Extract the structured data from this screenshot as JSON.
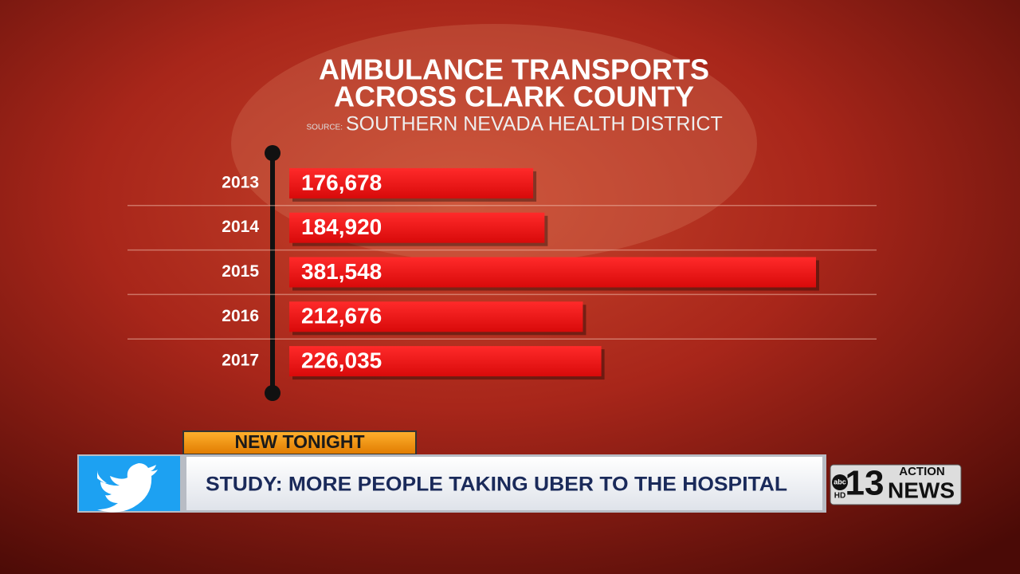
{
  "chart_data": {
    "type": "bar",
    "horizontal": true,
    "title": [
      "AMBULANCE TRANSPORTS",
      "ACROSS CLARK COUNTY"
    ],
    "source_label": "SOURCE:",
    "source": "SOUTHERN NEVADA HEALTH DISTRICT",
    "categories": [
      "2013",
      "2014",
      "2015",
      "2016",
      "2017"
    ],
    "values": [
      176678,
      184920,
      381548,
      212676,
      226035
    ],
    "value_labels": [
      "176,678",
      "184,920",
      "381,548",
      "212,676",
      "226,035"
    ],
    "color": "#e81010",
    "grid": true
  },
  "lower_third": {
    "tag": "NEW TONIGHT",
    "headline": "STUDY: MORE PEOPLE TAKING UBER TO THE HOSPITAL"
  },
  "logo": {
    "network": "abc",
    "hd": "HD",
    "number": "13",
    "top": "ACTION",
    "bottom": "NEWS"
  }
}
